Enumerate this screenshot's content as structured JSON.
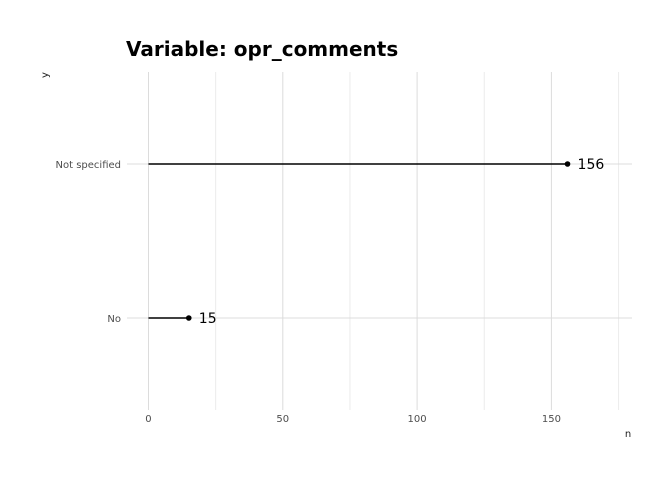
{
  "chart_data": {
    "type": "lollipop",
    "title": "Variable: opr_comments",
    "xlabel": "n",
    "ylabel": "y",
    "categories": [
      "Not specified",
      "No"
    ],
    "values": [
      156,
      15
    ],
    "value_labels": [
      "156",
      "15"
    ],
    "xlim": [
      0,
      180
    ],
    "x_ticks": [
      0,
      50,
      100,
      150
    ],
    "x_tick_labels": [
      "0",
      "50",
      "100",
      "150"
    ],
    "grid": true,
    "legend": "none"
  }
}
